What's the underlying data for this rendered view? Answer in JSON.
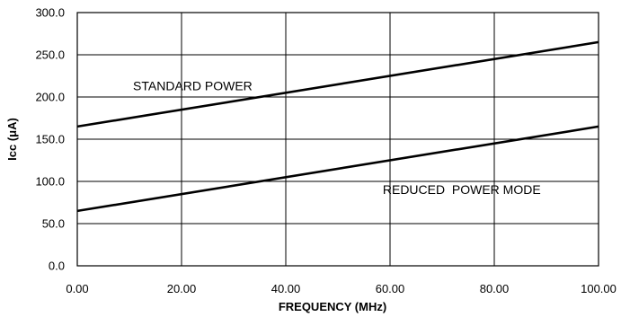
{
  "chart_data": {
    "type": "line",
    "xlabel": "FREQUENCY (MHz)",
    "ylabel": "Icc (μA)",
    "xlim": [
      0,
      100
    ],
    "ylim": [
      0,
      300
    ],
    "x_ticks": [
      "0.00",
      "20.00",
      "40.00",
      "60.00",
      "80.00",
      "100.00"
    ],
    "y_ticks": [
      "0.0",
      "50.0",
      "100.0",
      "150.0",
      "200.0",
      "250.0",
      "300.0"
    ],
    "grid": true,
    "series": [
      {
        "name": "STANDARD POWER",
        "x": [
          0,
          100
        ],
        "y": [
          165,
          265
        ]
      },
      {
        "name": "REDUCED  POWER MODE",
        "x": [
          0,
          100
        ],
        "y": [
          65,
          165
        ]
      }
    ]
  }
}
